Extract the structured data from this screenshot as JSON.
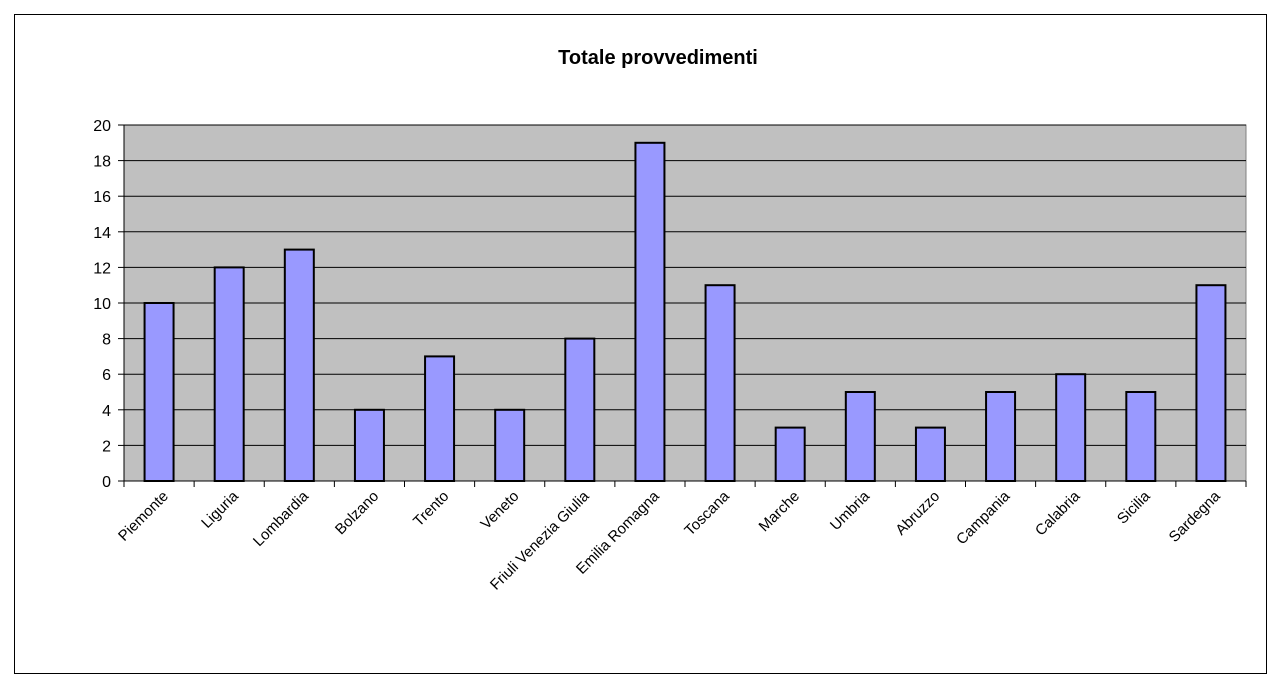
{
  "chart_data": {
    "type": "bar",
    "title": "Totale provvedimenti",
    "xlabel": "",
    "ylabel": "",
    "categories": [
      "Piemonte",
      "Liguria",
      "Lombardia",
      "Bolzano",
      "Trento",
      "Veneto",
      "Friuli Venezia Giulia",
      "Emilia Romagna",
      "Toscana",
      "Marche",
      "Umbria",
      "Abruzzo",
      "Campania",
      "Calabria",
      "Sicilia",
      "Sardegna"
    ],
    "values": [
      10,
      12,
      13,
      4,
      7,
      4,
      8,
      19,
      11,
      3,
      5,
      3,
      5,
      6,
      5,
      11
    ],
    "ylim": [
      0,
      20
    ],
    "yticks": [
      "0",
      "2",
      "4",
      "6",
      "8",
      "10",
      "12",
      "14",
      "16",
      "18",
      "20"
    ],
    "grid": true,
    "legend": "none",
    "colors": {
      "bar_fill": "#9999FF",
      "bar_stroke": "#000000",
      "plot_background": "#C0C0C0",
      "gridline": "#000000"
    }
  }
}
